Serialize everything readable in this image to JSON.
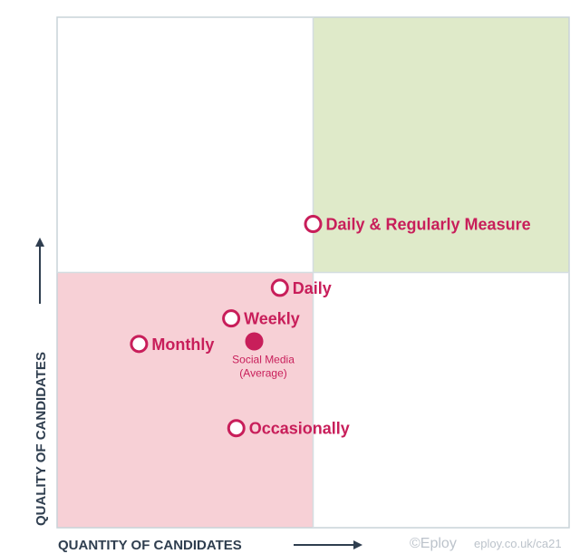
{
  "chart_data": {
    "type": "scatter",
    "x_label": "QUANTITY OF CANDIDATES",
    "y_label": "QUALITY OF CANDIDATES",
    "x_range": [
      0,
      10
    ],
    "y_range": [
      0,
      10
    ],
    "quadrant_split": {
      "x": 5,
      "y": 5
    },
    "quadrants": [
      {
        "position": "top-right",
        "color": "#dfeac9"
      },
      {
        "position": "bottom-left",
        "color": "#f7d0d6"
      }
    ],
    "points": [
      {
        "label": "Daily & Regularly Measure",
        "x": 5.0,
        "y": 5.95,
        "style": "hollow"
      },
      {
        "label": "Daily",
        "x": 4.35,
        "y": 4.7,
        "style": "hollow"
      },
      {
        "label": "Weekly",
        "x": 3.4,
        "y": 4.1,
        "style": "hollow"
      },
      {
        "label": "Monthly",
        "x": 1.6,
        "y": 3.6,
        "style": "hollow"
      },
      {
        "label": "Social Media",
        "sublabel": "(Average)",
        "x": 3.85,
        "y": 3.65,
        "style": "filled"
      },
      {
        "label": "Occasionally",
        "x": 3.5,
        "y": 1.95,
        "style": "hollow"
      }
    ],
    "colors": {
      "marker": "#c81e5a",
      "frame": "#c8d3d8",
      "axis_text": "#2f3e4f"
    }
  },
  "credit": {
    "copyright": "©Eploy",
    "url": "eploy.co.uk/ca21"
  }
}
